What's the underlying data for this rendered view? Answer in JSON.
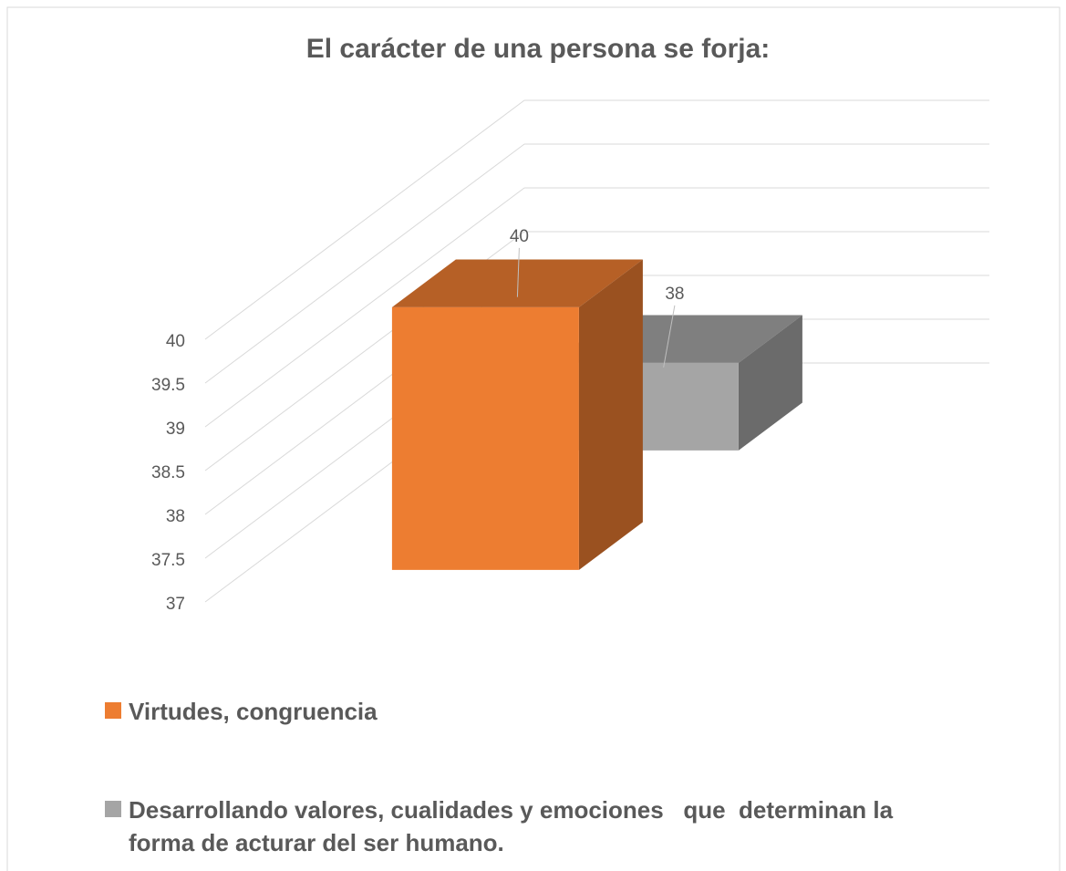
{
  "chart_data": {
    "type": "bar3d",
    "title": "El carácter de una persona se forja:",
    "series": [
      {
        "name": "Virtudes, congruencia",
        "color": "#ed7d31",
        "values": [
          40
        ]
      },
      {
        "name": "Desarrollando valores, cualidades y emociones   que  determinan la forma de acturar del ser humano.",
        "color": "#a5a5a5",
        "values": [
          38
        ]
      }
    ],
    "ylim": [
      37,
      40
    ],
    "yticks": [
      37,
      37.5,
      38,
      38.5,
      39,
      39.5,
      40
    ],
    "grid": true
  }
}
